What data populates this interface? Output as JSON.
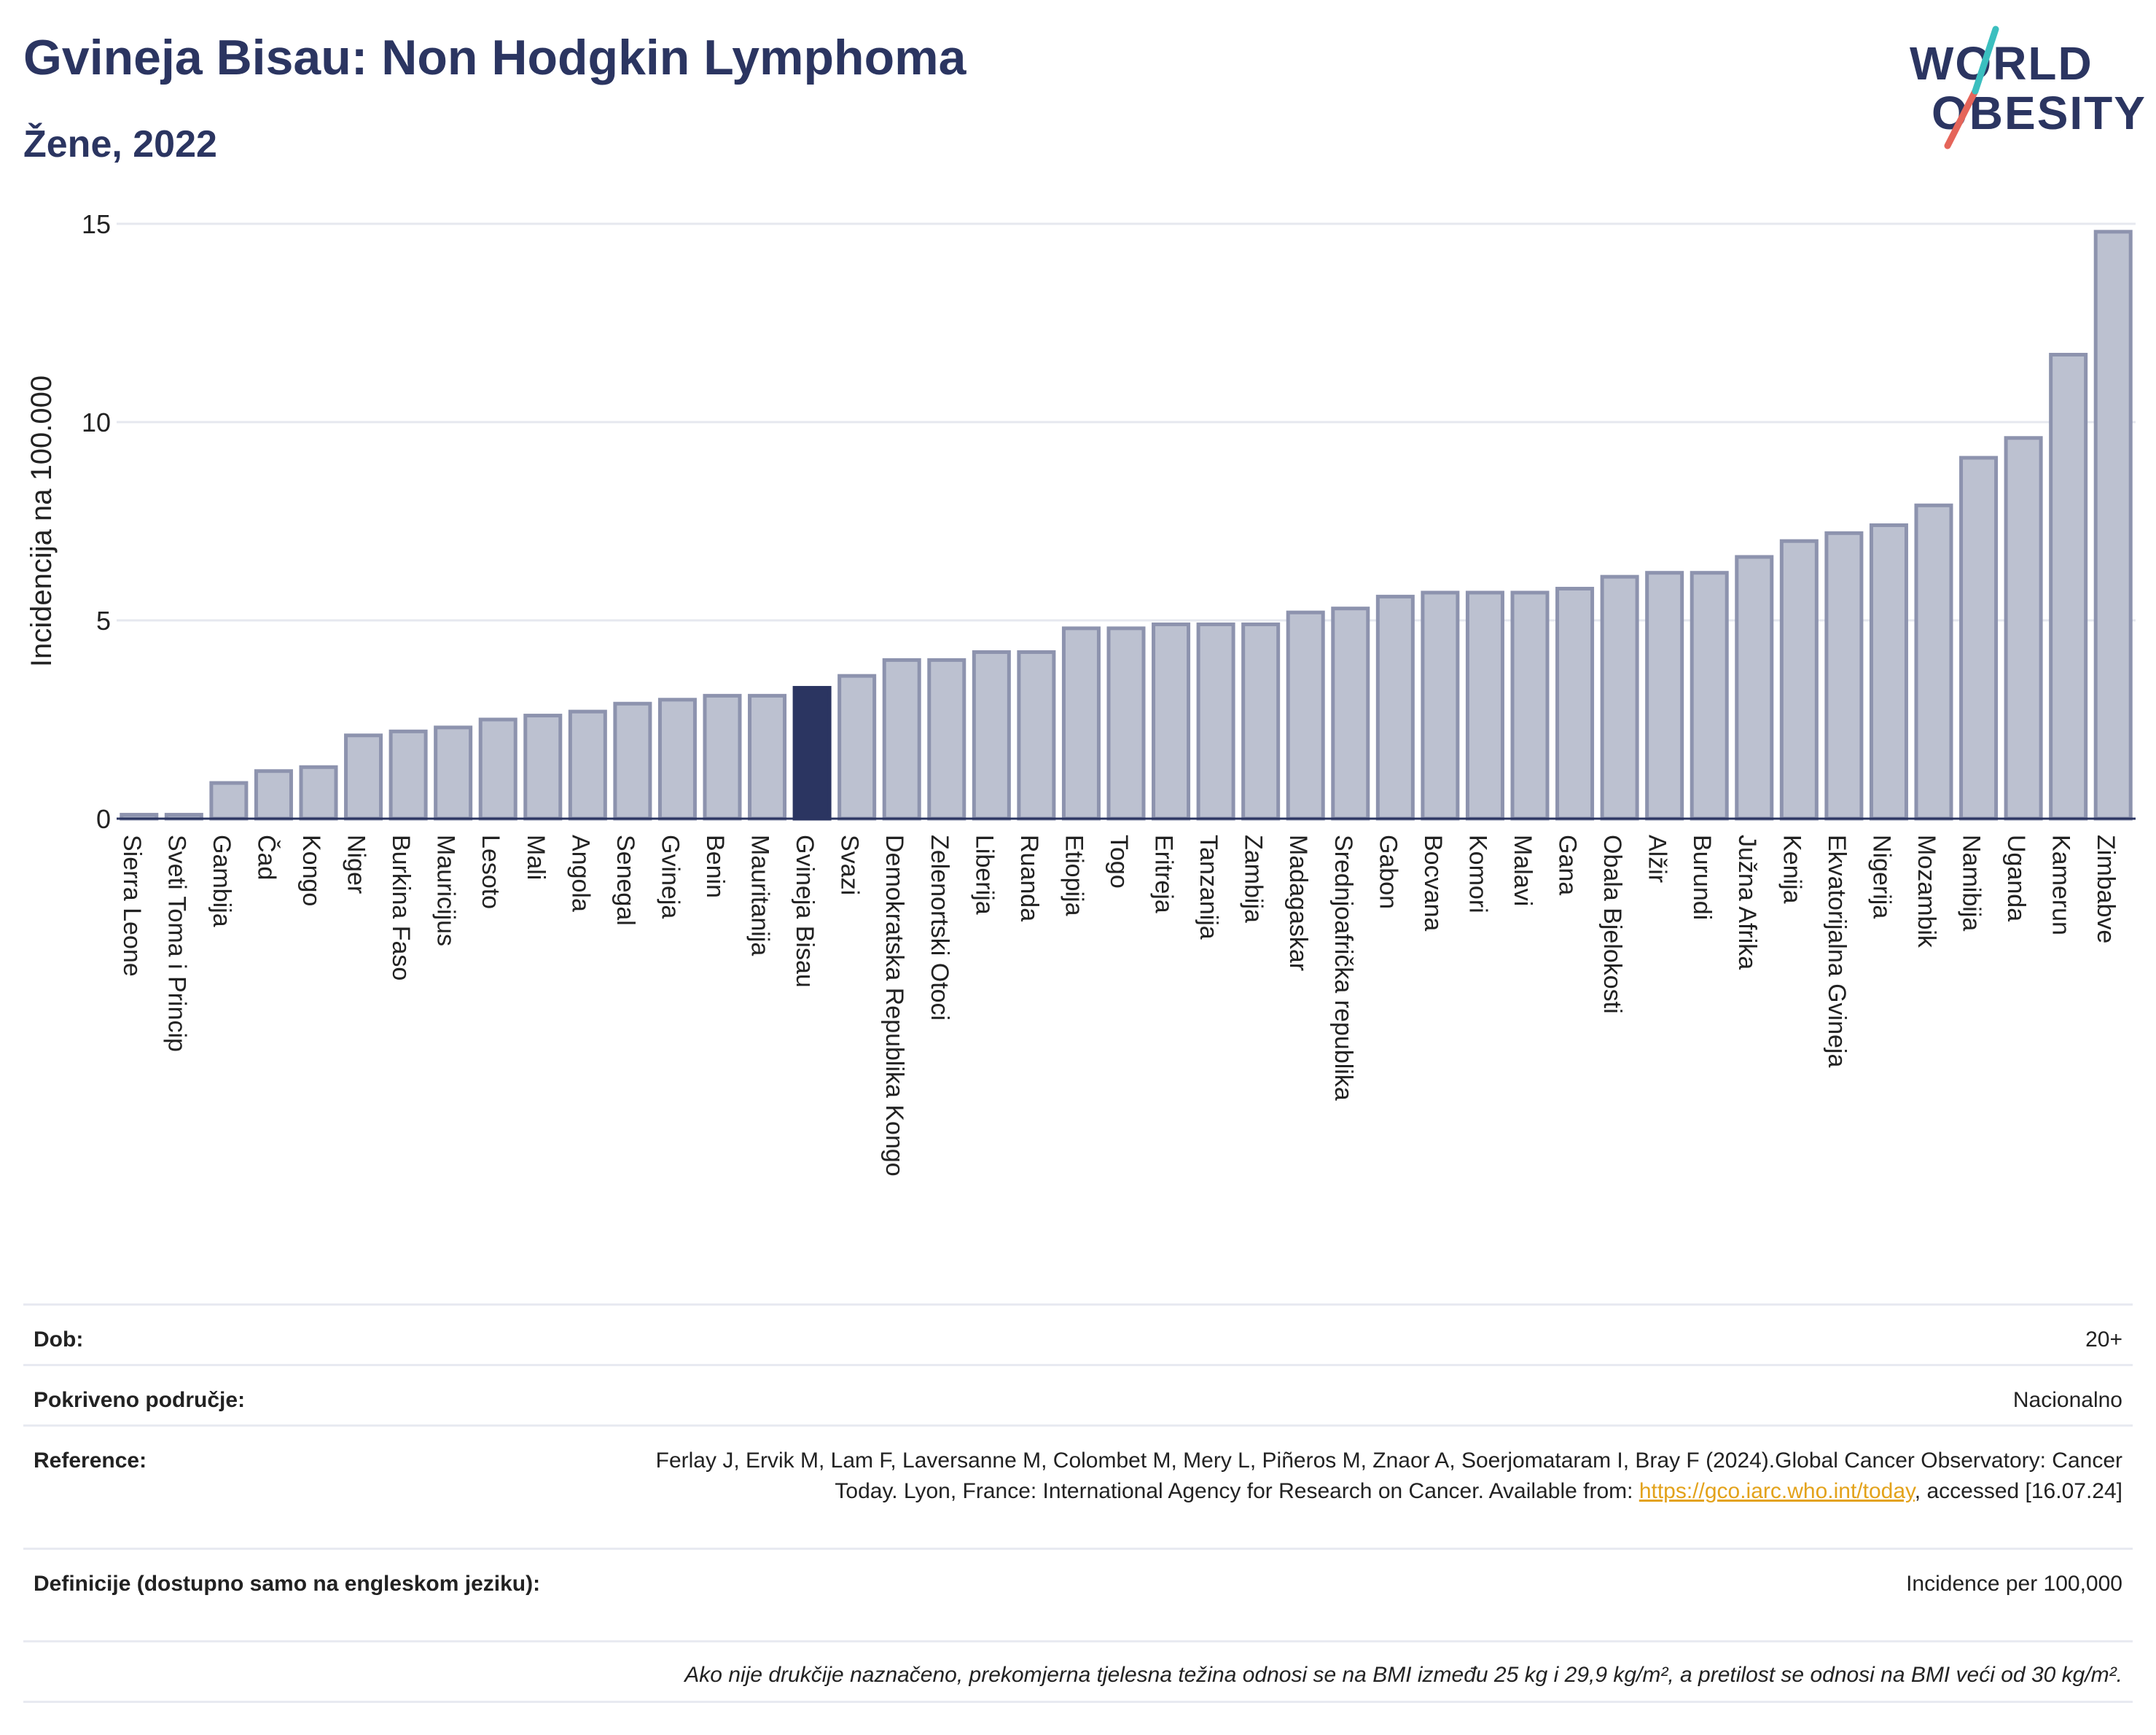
{
  "header": {
    "title": "Gvineja Bisau: Non Hodgkin Lymphoma",
    "subtitle": "Žene, 2022",
    "logo_line1": "WORLD",
    "logo_line2": "OBESITY"
  },
  "colors": {
    "title": "#2b3561",
    "bar": "#bcc1d0",
    "bar_stroke": "#8d93ae",
    "highlight": "#2b3561",
    "grid": "#e6e8ef",
    "logo_accent_teal": "#3bbfbf",
    "logo_accent_red": "#e5655a",
    "link": "#e3a21a"
  },
  "chart_data": {
    "type": "bar",
    "ylabel": "Incidencija na 100.000",
    "ylim": [
      0,
      15
    ],
    "yticks": [
      "0",
      "5",
      "10",
      "15"
    ],
    "ytick_values": [
      0,
      5,
      10,
      15
    ],
    "grid": true,
    "highlight_category": "Gvineja Bisau",
    "categories": [
      "Sierra Leone",
      "Sveti Toma i Princip",
      "Gambija",
      "Čad",
      "Kongo",
      "Niger",
      "Burkina Faso",
      "Mauricijus",
      "Lesoto",
      "Mali",
      "Angola",
      "Senegal",
      "Gvineja",
      "Benin",
      "Mauritanija",
      "Gvineja Bisau",
      "Svazi",
      "Demokratska Republika Kongo",
      "Zelenortski Otoci",
      "Liberija",
      "Ruanda",
      "Etiopija",
      "Togo",
      "Eritreja",
      "Tanzanija",
      "Zambija",
      "Madagaskar",
      "Srednjoafrička republika",
      "Gabon",
      "Bocvana",
      "Komori",
      "Malavi",
      "Gana",
      "Obala Bjelokosti",
      "Alžir",
      "Burundi",
      "Južna Afrika",
      "Kenija",
      "Ekvatorijalna Gvineja",
      "Nigerija",
      "Mozambik",
      "Namibija",
      "Uganda",
      "Kamerun",
      "Zimbabve"
    ],
    "values": [
      0.1,
      0.1,
      0.9,
      1.2,
      1.3,
      2.1,
      2.2,
      2.3,
      2.5,
      2.6,
      2.7,
      2.9,
      3.0,
      3.1,
      3.1,
      3.3,
      3.6,
      4.0,
      4.0,
      4.2,
      4.2,
      4.8,
      4.8,
      4.9,
      4.9,
      4.9,
      5.2,
      5.3,
      5.6,
      5.7,
      5.7,
      5.7,
      5.8,
      6.1,
      6.2,
      6.2,
      6.6,
      7.0,
      7.2,
      7.4,
      7.9,
      9.1,
      9.6,
      11.7,
      14.8
    ]
  },
  "meta": {
    "age_label": "Dob:",
    "age_value": "20+",
    "coverage_label": "Pokriveno područje:",
    "coverage_value": "Nacionalno",
    "reference_label": "Reference:",
    "reference_text_1": "Ferlay J, Ervik M, Lam F, Laversanne M, Colombet M, Mery L, Piñeros M, Znaor A, Soerjomataram I, Bray F (2024).Global Cancer Observatory: Cancer Today. Lyon, France: International Agency for Research on Cancer. Available from: ",
    "reference_link": "https://gco.iarc.who.int/today",
    "reference_text_2": ", accessed [16.07.24]",
    "definitions_label": "Definicije (dostupno samo na engleskom jeziku):",
    "definitions_value": "Incidence per 100,000",
    "footnote": "Ako nije drukčije naznačeno, prekomjerna tjelesna težina odnosi se na BMI između 25 kg i 29,9 kg/m², a pretilost se odnosi na BMI veći od 30 kg/m²."
  }
}
